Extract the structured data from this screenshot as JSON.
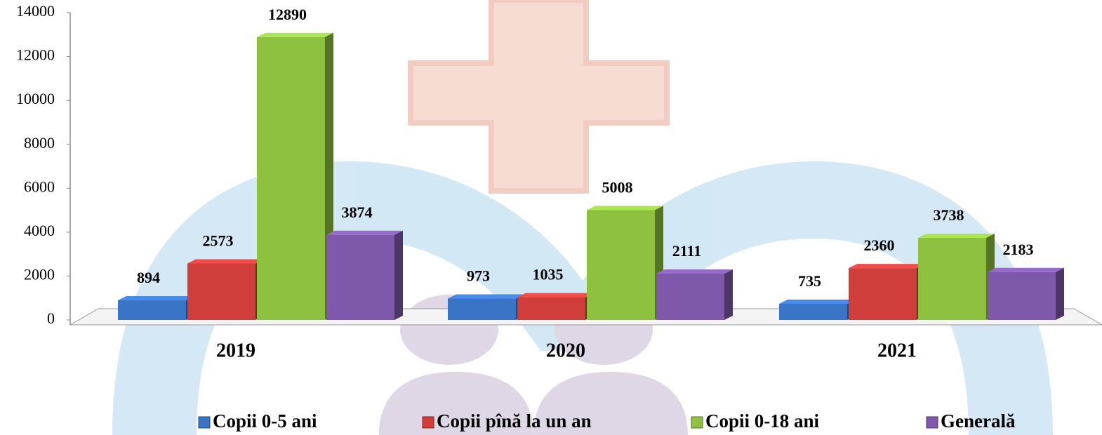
{
  "chart_data": {
    "type": "bar3d",
    "categories": [
      "2019",
      "2020",
      "2021"
    ],
    "series": [
      {
        "name": "Copii 0-5 ani",
        "color": "#3a74c6",
        "values": [
          894,
          973,
          735
        ]
      },
      {
        "name": "Copii pînă la un an",
        "color": "#cf3e3a",
        "values": [
          2573,
          1035,
          2360
        ]
      },
      {
        "name": "Copii 0-18 ani",
        "color": "#8fc140",
        "values": [
          12890,
          5008,
          3738
        ]
      },
      {
        "name": "Generală",
        "color": "#7f58ab",
        "values": [
          3874,
          2111,
          2183
        ]
      }
    ],
    "ylim": [
      0,
      14000
    ],
    "yticks": [
      0,
      2000,
      4000,
      6000,
      8000,
      10000,
      12000,
      14000
    ],
    "legend": "bottom"
  }
}
